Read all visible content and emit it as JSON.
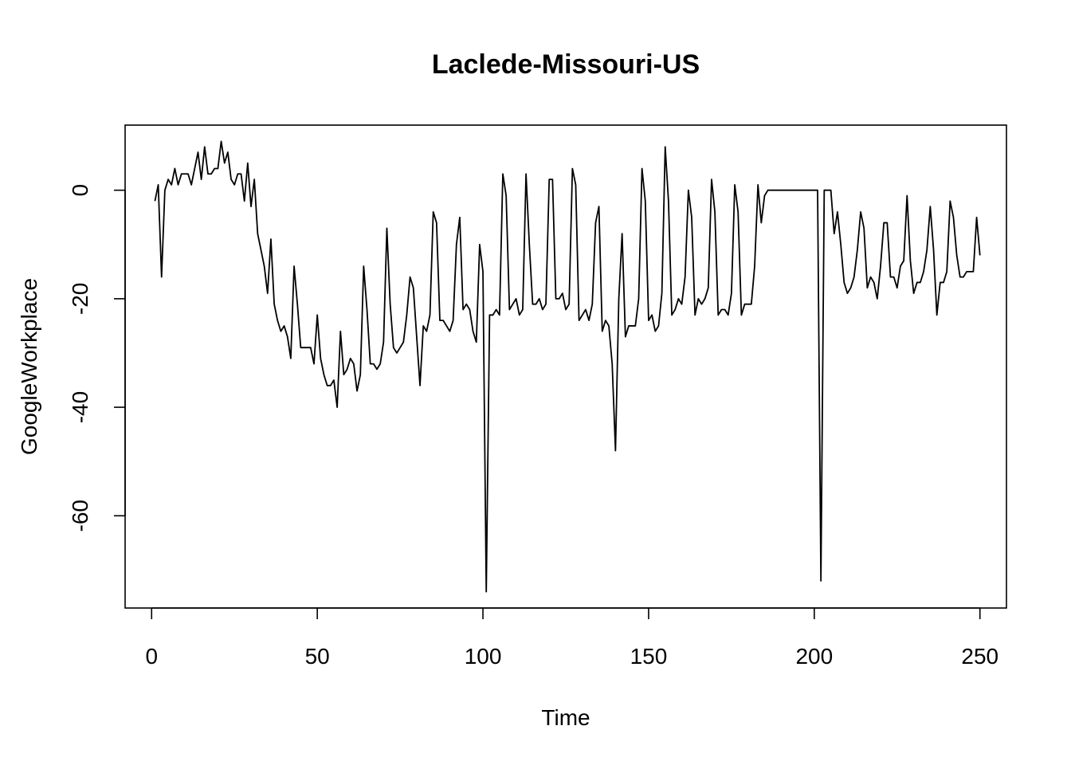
{
  "chart_data": {
    "type": "line",
    "title": "Laclede-Missouri-US",
    "xlabel": "Time",
    "ylabel": "GoogleWorkplace",
    "xlim": [
      -8,
      258
    ],
    "ylim": [
      -77,
      12
    ],
    "xticks": [
      0,
      50,
      100,
      150,
      200,
      250
    ],
    "yticks": [
      0,
      -20,
      -40,
      -60
    ],
    "grid": false,
    "line_color": "#000000",
    "series": [
      {
        "x_start": 1,
        "values": [
          -2,
          1,
          -16,
          0,
          2,
          1,
          4,
          1,
          3,
          3,
          3,
          1,
          4,
          7,
          2,
          8,
          3,
          3,
          4,
          4,
          9,
          5,
          7,
          2,
          1,
          3,
          3,
          -2,
          5,
          -3,
          2,
          -8,
          -11,
          -14,
          -19,
          -9,
          -21,
          -24,
          -26,
          -25,
          -27,
          -31,
          -14,
          -21,
          -29,
          -29,
          -29,
          -29,
          -32,
          -23,
          -31,
          -34,
          -36,
          -36,
          -35,
          -40,
          -26,
          -34,
          -33,
          -31,
          -32,
          -37,
          -34,
          -14,
          -22,
          -32,
          -32,
          -33,
          -32,
          -28,
          -7,
          -21,
          -29,
          -30,
          -29,
          -28,
          -23,
          -16,
          -18,
          -27,
          -36,
          -25,
          -26,
          -23,
          -4,
          -6,
          -24,
          -24,
          -25,
          -26,
          -24,
          -10,
          -5,
          -22,
          -21,
          -22,
          -26,
          -28,
          -10,
          -15,
          -74,
          -23,
          -23,
          -22,
          -23,
          3,
          -1,
          -22,
          -21,
          -20,
          -23,
          -22,
          3,
          -10,
          -21,
          -21,
          -20,
          -22,
          -21,
          2,
          2,
          -20,
          -20,
          -19,
          -22,
          -21,
          4,
          1,
          -24,
          -23,
          -22,
          -24,
          -21,
          -6,
          -3,
          -26,
          -24,
          -25,
          -32,
          -48,
          -20,
          -8,
          -27,
          -25,
          -25,
          -25,
          -20,
          4,
          -2,
          -24,
          -23,
          -26,
          -25,
          -19,
          8,
          -2,
          -23,
          -22,
          -20,
          -21,
          -16,
          0,
          -5,
          -23,
          -20,
          -21,
          -20,
          -18,
          2,
          -4,
          -23,
          -22,
          -22,
          -23,
          -19,
          1,
          -4,
          -23,
          -21,
          -21,
          -21,
          -14,
          1,
          -6,
          -1,
          0,
          0,
          0,
          0,
          0,
          0,
          0,
          0,
          0,
          0,
          0,
          0,
          0,
          0,
          0,
          0,
          -72,
          0,
          0,
          0,
          -8,
          -4,
          -10,
          -17,
          -19,
          -18,
          -16,
          -11,
          -4,
          -7,
          -18,
          -16,
          -17,
          -20,
          -14,
          -6,
          -6,
          -16,
          -16,
          -18,
          -14,
          -13,
          -1,
          -13,
          -19,
          -17,
          -17,
          -15,
          -11,
          -3,
          -11,
          -23,
          -17,
          -17,
          -15,
          -2,
          -5,
          -12,
          -16,
          -16,
          -15,
          -15,
          -15,
          -5,
          -12
        ]
      }
    ]
  }
}
